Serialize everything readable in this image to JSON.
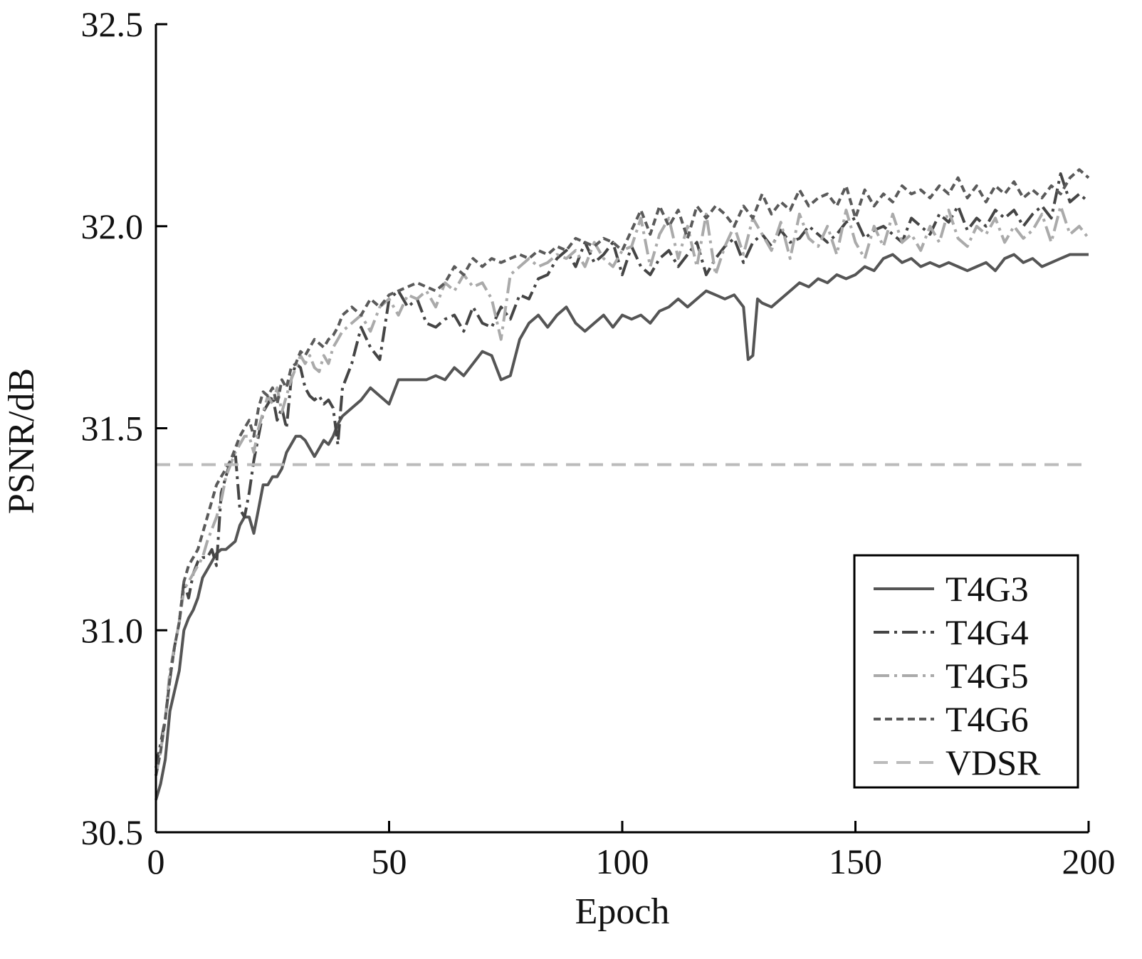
{
  "chart_data": {
    "type": "line",
    "title": "",
    "xlabel": "Epoch",
    "ylabel": "PSNR/dB",
    "xlim": [
      0,
      200
    ],
    "ylim": [
      30.5,
      32.5
    ],
    "xticks": [
      "0",
      "50",
      "100",
      "150",
      "200"
    ],
    "yticks": [
      "30.5",
      "31.0",
      "31.5",
      "32.0",
      "32.5"
    ],
    "grid": false,
    "legend_position": "bottom-right",
    "series": [
      {
        "name": "T4G3",
        "color": "#555555",
        "dash": "solid",
        "x": [
          0,
          1,
          2,
          3,
          4,
          5,
          6,
          7,
          8,
          9,
          10,
          11,
          12,
          13,
          14,
          15,
          16,
          17,
          18,
          19,
          20,
          21,
          22,
          23,
          24,
          25,
          26,
          27,
          28,
          29,
          30,
          31,
          32,
          33,
          34,
          35,
          36,
          37,
          38,
          39,
          40,
          42,
          44,
          46,
          48,
          50,
          52,
          54,
          56,
          58,
          60,
          62,
          64,
          66,
          68,
          70,
          72,
          74,
          76,
          78,
          80,
          82,
          84,
          86,
          88,
          90,
          92,
          94,
          96,
          98,
          100,
          102,
          104,
          106,
          108,
          110,
          112,
          114,
          116,
          118,
          120,
          122,
          124,
          126,
          127,
          128,
          129,
          130,
          132,
          134,
          136,
          138,
          140,
          142,
          144,
          146,
          148,
          150,
          152,
          154,
          156,
          158,
          160,
          162,
          164,
          166,
          168,
          170,
          172,
          174,
          176,
          178,
          180,
          182,
          184,
          186,
          188,
          190,
          192,
          194,
          196,
          198,
          200
        ],
        "values": [
          30.58,
          30.62,
          30.68,
          30.8,
          30.85,
          30.9,
          31.0,
          31.03,
          31.05,
          31.08,
          31.13,
          31.15,
          31.17,
          31.19,
          31.2,
          31.2,
          31.21,
          31.22,
          31.26,
          31.28,
          31.28,
          31.24,
          31.3,
          31.36,
          31.36,
          31.38,
          31.38,
          31.4,
          31.44,
          31.46,
          31.48,
          31.48,
          31.47,
          31.45,
          31.43,
          31.45,
          31.47,
          31.46,
          31.48,
          31.51,
          31.53,
          31.55,
          31.57,
          31.6,
          31.58,
          31.56,
          31.62,
          31.62,
          31.62,
          31.62,
          31.63,
          31.62,
          31.65,
          31.63,
          31.66,
          31.69,
          31.68,
          31.62,
          31.63,
          31.72,
          31.76,
          31.78,
          31.75,
          31.78,
          31.8,
          31.76,
          31.74,
          31.76,
          31.78,
          31.75,
          31.78,
          31.77,
          31.78,
          31.76,
          31.79,
          31.8,
          31.82,
          31.8,
          31.82,
          31.84,
          31.83,
          31.82,
          31.83,
          31.8,
          31.67,
          31.68,
          31.82,
          31.81,
          31.8,
          31.82,
          31.84,
          31.86,
          31.85,
          31.87,
          31.86,
          31.88,
          31.87,
          31.88,
          31.9,
          31.89,
          31.92,
          31.93,
          31.91,
          31.92,
          31.9,
          31.91,
          31.9,
          31.91,
          31.9,
          31.89,
          31.9,
          31.91,
          31.89,
          31.92,
          31.93,
          31.91,
          31.92,
          31.9,
          31.91,
          31.92,
          31.93,
          31.93,
          31.93
        ]
      },
      {
        "name": "T4G4",
        "color": "#454545",
        "dash": "dashdot",
        "x": [
          0,
          1,
          2,
          3,
          4,
          5,
          6,
          7,
          8,
          9,
          10,
          11,
          12,
          13,
          14,
          15,
          16,
          17,
          18,
          19,
          20,
          21,
          22,
          23,
          24,
          25,
          26,
          27,
          28,
          29,
          30,
          31,
          32,
          33,
          34,
          35,
          36,
          37,
          38,
          39,
          40,
          42,
          44,
          46,
          48,
          50,
          52,
          54,
          56,
          58,
          60,
          62,
          64,
          66,
          68,
          70,
          72,
          74,
          76,
          78,
          80,
          82,
          84,
          86,
          88,
          90,
          92,
          94,
          96,
          98,
          100,
          102,
          104,
          106,
          108,
          110,
          112,
          114,
          116,
          118,
          120,
          122,
          124,
          126,
          128,
          130,
          132,
          134,
          136,
          138,
          140,
          142,
          144,
          146,
          148,
          150,
          152,
          154,
          156,
          158,
          160,
          162,
          164,
          166,
          168,
          170,
          172,
          174,
          176,
          178,
          180,
          182,
          184,
          186,
          188,
          190,
          192,
          194,
          196,
          198,
          200
        ],
        "values": [
          30.66,
          30.72,
          30.78,
          30.88,
          30.96,
          31.02,
          31.12,
          31.08,
          31.14,
          31.17,
          31.18,
          31.18,
          31.2,
          31.16,
          31.34,
          31.38,
          31.42,
          31.44,
          31.3,
          31.28,
          31.34,
          31.42,
          31.48,
          31.54,
          31.56,
          31.58,
          31.52,
          31.55,
          31.5,
          31.62,
          31.66,
          31.65,
          31.6,
          31.58,
          31.57,
          31.58,
          31.56,
          31.57,
          31.55,
          31.46,
          31.6,
          31.66,
          31.75,
          31.7,
          31.67,
          31.82,
          31.84,
          31.8,
          31.82,
          31.76,
          31.75,
          31.77,
          31.78,
          31.74,
          31.8,
          31.76,
          31.75,
          31.8,
          31.77,
          31.83,
          31.82,
          31.87,
          31.88,
          31.92,
          31.94,
          31.9,
          31.96,
          31.91,
          31.93,
          31.96,
          31.88,
          31.95,
          31.9,
          31.88,
          31.92,
          31.94,
          31.9,
          31.93,
          31.96,
          31.88,
          31.92,
          31.95,
          31.97,
          31.91,
          31.96,
          31.98,
          31.95,
          31.99,
          31.96,
          31.97,
          32.0,
          31.98,
          31.96,
          31.98,
          32.01,
          32.02,
          31.97,
          31.99,
          32.0,
          31.98,
          31.96,
          32.02,
          32.0,
          31.98,
          32.03,
          32.01,
          32.05,
          31.99,
          32.02,
          32.0,
          32.04,
          32.02,
          32.04,
          32.0,
          32.03,
          32.05,
          32.02,
          32.13,
          32.06,
          32.08,
          32.06
        ]
      },
      {
        "name": "T4G5",
        "color": "#aaaaaa",
        "dash": "dashdot",
        "x": [
          0,
          1,
          2,
          3,
          4,
          5,
          6,
          7,
          8,
          9,
          10,
          11,
          12,
          13,
          14,
          15,
          16,
          17,
          18,
          19,
          20,
          21,
          22,
          23,
          24,
          25,
          26,
          27,
          28,
          29,
          30,
          31,
          32,
          33,
          34,
          35,
          36,
          37,
          38,
          39,
          40,
          42,
          44,
          46,
          48,
          50,
          52,
          54,
          56,
          58,
          60,
          62,
          64,
          66,
          68,
          70,
          72,
          74,
          76,
          78,
          80,
          82,
          84,
          86,
          88,
          90,
          92,
          94,
          96,
          98,
          100,
          102,
          104,
          106,
          108,
          110,
          112,
          114,
          116,
          118,
          120,
          122,
          124,
          126,
          128,
          130,
          132,
          134,
          136,
          138,
          140,
          142,
          144,
          146,
          148,
          150,
          152,
          154,
          156,
          158,
          160,
          162,
          164,
          166,
          168,
          170,
          172,
          174,
          176,
          178,
          180,
          182,
          184,
          186,
          188,
          190,
          192,
          194,
          196,
          198,
          200
        ],
        "values": [
          30.64,
          30.7,
          30.78,
          30.9,
          30.96,
          31.02,
          31.1,
          31.12,
          31.14,
          31.16,
          31.18,
          31.22,
          31.25,
          31.28,
          31.32,
          31.38,
          31.41,
          31.44,
          31.46,
          31.48,
          31.48,
          31.44,
          31.5,
          31.54,
          31.58,
          31.56,
          31.6,
          31.54,
          31.58,
          31.62,
          31.65,
          31.68,
          31.66,
          31.68,
          31.65,
          31.64,
          31.68,
          31.66,
          31.7,
          31.72,
          31.74,
          31.76,
          31.78,
          31.74,
          31.8,
          31.82,
          31.78,
          31.83,
          31.82,
          31.84,
          31.8,
          31.86,
          31.84,
          31.88,
          31.85,
          31.86,
          31.82,
          31.72,
          31.88,
          31.9,
          31.92,
          31.9,
          31.91,
          31.93,
          31.92,
          31.94,
          31.9,
          31.96,
          31.92,
          31.9,
          31.94,
          31.95,
          32.02,
          31.9,
          31.98,
          32.02,
          31.92,
          32.0,
          31.9,
          32.03,
          31.88,
          31.95,
          32.0,
          31.93,
          32.02,
          31.98,
          31.94,
          32.01,
          31.92,
          32.03,
          31.97,
          31.95,
          32.0,
          31.93,
          32.04,
          31.96,
          31.92,
          32.0,
          31.95,
          32.03,
          31.96,
          31.98,
          31.94,
          32.0,
          31.96,
          32.04,
          31.97,
          31.95,
          32.0,
          31.98,
          32.02,
          31.96,
          32.0,
          31.97,
          31.99,
          32.03,
          31.96,
          32.05,
          31.98,
          32.0,
          31.97
        ]
      },
      {
        "name": "T4G6",
        "color": "#5a5a5a",
        "dash": "dashed",
        "x": [
          0,
          1,
          2,
          3,
          4,
          5,
          6,
          7,
          8,
          9,
          10,
          11,
          12,
          13,
          14,
          15,
          16,
          17,
          18,
          19,
          20,
          21,
          22,
          23,
          24,
          25,
          26,
          27,
          28,
          29,
          30,
          31,
          32,
          33,
          34,
          35,
          36,
          37,
          38,
          39,
          40,
          42,
          44,
          46,
          48,
          50,
          52,
          54,
          56,
          58,
          60,
          62,
          64,
          66,
          68,
          70,
          72,
          74,
          76,
          78,
          80,
          82,
          84,
          86,
          88,
          90,
          92,
          94,
          96,
          98,
          100,
          102,
          104,
          106,
          108,
          110,
          112,
          114,
          116,
          118,
          120,
          122,
          124,
          126,
          128,
          130,
          132,
          134,
          136,
          138,
          140,
          142,
          144,
          146,
          148,
          150,
          152,
          154,
          156,
          158,
          160,
          162,
          164,
          166,
          168,
          170,
          172,
          174,
          176,
          178,
          180,
          182,
          184,
          186,
          188,
          190,
          192,
          194,
          196,
          198,
          200
        ],
        "values": [
          30.64,
          30.7,
          30.78,
          30.88,
          30.96,
          31.02,
          31.12,
          31.16,
          31.18,
          31.2,
          31.24,
          31.28,
          31.32,
          31.36,
          31.38,
          31.4,
          31.42,
          31.45,
          31.48,
          31.5,
          31.52,
          31.48,
          31.55,
          31.59,
          31.58,
          31.6,
          31.56,
          31.62,
          31.6,
          31.65,
          31.66,
          31.69,
          31.68,
          31.7,
          31.72,
          31.71,
          31.7,
          31.72,
          31.73,
          31.75,
          31.78,
          31.8,
          31.78,
          31.82,
          31.8,
          31.83,
          31.84,
          31.85,
          31.86,
          31.85,
          31.84,
          31.86,
          31.9,
          31.88,
          31.92,
          31.9,
          31.92,
          31.91,
          31.92,
          31.93,
          31.92,
          31.94,
          31.93,
          31.95,
          31.94,
          31.97,
          31.96,
          31.95,
          31.97,
          31.96,
          31.94,
          31.99,
          32.04,
          31.98,
          32.05,
          32.0,
          32.04,
          31.97,
          32.05,
          32.02,
          32.05,
          32.03,
          32.0,
          32.05,
          32.02,
          32.08,
          32.03,
          32.06,
          32.04,
          32.09,
          32.05,
          32.07,
          32.08,
          32.05,
          32.1,
          32.02,
          32.09,
          32.05,
          32.08,
          32.06,
          32.1,
          32.08,
          32.09,
          32.07,
          32.1,
          32.08,
          32.12,
          32.07,
          32.1,
          32.06,
          32.1,
          32.08,
          32.11,
          32.07,
          32.09,
          32.07,
          32.1,
          32.08,
          32.12,
          32.14,
          32.12
        ]
      },
      {
        "name": "VDSR",
        "color": "#bbbbbb",
        "dash": "longdash",
        "x": [
          0,
          200
        ],
        "values": [
          31.41,
          31.41
        ]
      }
    ]
  }
}
